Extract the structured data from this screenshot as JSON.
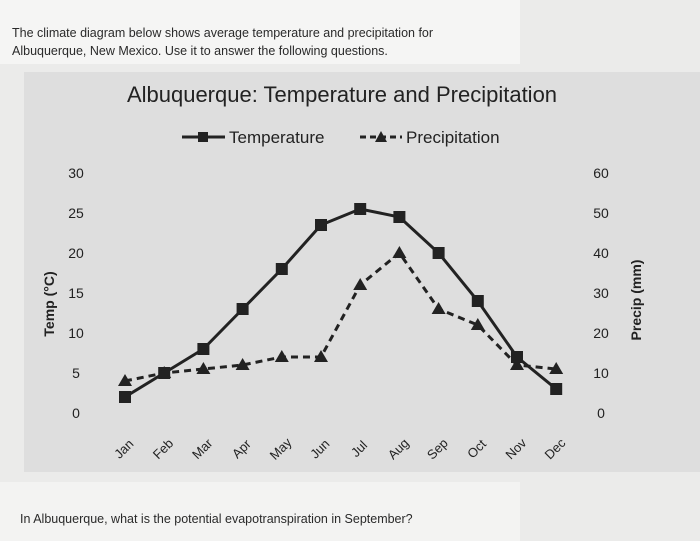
{
  "intro": {
    "line1": "The climate diagram below shows average temperature and precipitation for",
    "line2": "Albuquerque, New Mexico.  Use it to answer the following questions."
  },
  "question": "In Albuquerque, what is the potential evapotranspiration in September?",
  "chart_data": {
    "type": "line",
    "title": "Albuquerque: Temperature and Precipitation",
    "categories": [
      "Jan",
      "Feb",
      "Mar",
      "Apr",
      "May",
      "Jun",
      "Jul",
      "Aug",
      "Sep",
      "Oct",
      "Nov",
      "Dec"
    ],
    "series": [
      {
        "name": "Temperature",
        "axis": "left",
        "marker": "square",
        "line": "solid",
        "color": "#222222",
        "values": [
          2,
          5,
          8,
          13,
          18,
          23.5,
          25.5,
          24.5,
          20,
          14,
          7,
          3
        ]
      },
      {
        "name": "Precipitation",
        "axis": "right",
        "marker": "triangle",
        "line": "dashed",
        "color": "#222222",
        "values": [
          8,
          10,
          11,
          12,
          14,
          14,
          32,
          40,
          26,
          22,
          12,
          11
        ]
      }
    ],
    "y_left": {
      "label": "Temp (°C)",
      "ticks": [
        "0",
        "5",
        "10",
        "15",
        "20",
        "25",
        "30"
      ],
      "range": [
        0,
        30
      ]
    },
    "y_right": {
      "label": "Precip (mm)",
      "ticks": [
        "0",
        "10",
        "20",
        "30",
        "40",
        "50",
        "60"
      ],
      "range": [
        0,
        60
      ]
    },
    "legend_position": "top",
    "grid": false
  }
}
